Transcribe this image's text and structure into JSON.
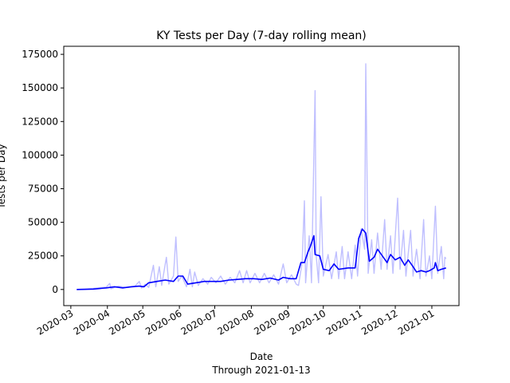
{
  "chart_data": {
    "type": "line",
    "title": "KY Tests per Day (7-day rolling mean)",
    "xlabel": "Date",
    "xlabel_sub": "Through 2021-01-13",
    "ylabel": "Tests per Day",
    "xlim": [
      "2020-02-24",
      "2021-01-24"
    ],
    "ylim": [
      -12000,
      181000
    ],
    "x_tick_labels": [
      "2020-03",
      "2020-04",
      "2020-05",
      "2020-06",
      "2020-07",
      "2020-08",
      "2020-09",
      "2020-10",
      "2020-11",
      "2020-12",
      "2021-01"
    ],
    "y_tick_values": [
      0,
      25000,
      50000,
      75000,
      100000,
      125000,
      150000,
      175000
    ],
    "y_tick_labels": [
      "0",
      "25000",
      "50000",
      "75000",
      "100000",
      "125000",
      "150000",
      "175000"
    ],
    "grid": false,
    "series": [
      {
        "role": "daily",
        "color": "#bfbfff",
        "points": [
          [
            "2020-03-06",
            0
          ],
          [
            "2020-03-13",
            200
          ],
          [
            "2020-03-20",
            800
          ],
          [
            "2020-03-27",
            1500
          ],
          [
            "2020-03-31",
            1800
          ],
          [
            "2020-04-03",
            4500
          ],
          [
            "2020-04-04",
            500
          ],
          [
            "2020-04-10",
            2500
          ],
          [
            "2020-04-17",
            1500
          ],
          [
            "2020-04-24",
            2000
          ],
          [
            "2020-04-28",
            6000
          ],
          [
            "2020-04-30",
            1000
          ],
          [
            "2020-05-03",
            4000
          ],
          [
            "2020-05-06",
            1500
          ],
          [
            "2020-05-10",
            18000
          ],
          [
            "2020-05-12",
            2000
          ],
          [
            "2020-05-15",
            17000
          ],
          [
            "2020-05-17",
            3000
          ],
          [
            "2020-05-21",
            24000
          ],
          [
            "2020-05-23",
            4000
          ],
          [
            "2020-05-27",
            10000
          ],
          [
            "2020-05-29",
            39000
          ],
          [
            "2020-05-31",
            6000
          ],
          [
            "2020-06-03",
            10000
          ],
          [
            "2020-06-07",
            2000
          ],
          [
            "2020-06-10",
            15000
          ],
          [
            "2020-06-12",
            2000
          ],
          [
            "2020-06-14",
            13000
          ],
          [
            "2020-06-17",
            3000
          ],
          [
            "2020-06-21",
            8000
          ],
          [
            "2020-06-25",
            4000
          ],
          [
            "2020-06-28",
            9000
          ],
          [
            "2020-07-02",
            5000
          ],
          [
            "2020-07-06",
            10000
          ],
          [
            "2020-07-10",
            4000
          ],
          [
            "2020-07-14",
            9000
          ],
          [
            "2020-07-18",
            5000
          ],
          [
            "2020-07-22",
            14000
          ],
          [
            "2020-07-25",
            5000
          ],
          [
            "2020-07-28",
            14000
          ],
          [
            "2020-07-31",
            5000
          ],
          [
            "2020-08-04",
            12000
          ],
          [
            "2020-08-08",
            5000
          ],
          [
            "2020-08-12",
            12000
          ],
          [
            "2020-08-16",
            5000
          ],
          [
            "2020-08-20",
            11000
          ],
          [
            "2020-08-24",
            4000
          ],
          [
            "2020-08-28",
            19000
          ],
          [
            "2020-08-31",
            5000
          ],
          [
            "2020-09-04",
            11000
          ],
          [
            "2020-09-08",
            4000
          ],
          [
            "2020-09-10",
            3000
          ],
          [
            "2020-09-13",
            20000
          ],
          [
            "2020-09-15",
            66000
          ],
          [
            "2020-09-16",
            5000
          ],
          [
            "2020-09-19",
            40000
          ],
          [
            "2020-09-21",
            5000
          ],
          [
            "2020-09-24",
            148000
          ],
          [
            "2020-09-25",
            25000
          ],
          [
            "2020-09-27",
            5000
          ],
          [
            "2020-09-29",
            69000
          ],
          [
            "2020-10-01",
            10000
          ],
          [
            "2020-10-05",
            26000
          ],
          [
            "2020-10-08",
            8000
          ],
          [
            "2020-10-12",
            28000
          ],
          [
            "2020-10-14",
            8000
          ],
          [
            "2020-10-17",
            32000
          ],
          [
            "2020-10-19",
            8000
          ],
          [
            "2020-10-22",
            28000
          ],
          [
            "2020-10-25",
            8000
          ],
          [
            "2020-10-28",
            33000
          ],
          [
            "2020-10-30",
            10000
          ],
          [
            "2020-11-02",
            45000
          ],
          [
            "2020-11-05",
            30000
          ],
          [
            "2020-11-06",
            168000
          ],
          [
            "2020-11-08",
            12000
          ],
          [
            "2020-11-11",
            37000
          ],
          [
            "2020-11-13",
            12000
          ],
          [
            "2020-11-16",
            42000
          ],
          [
            "2020-11-19",
            15000
          ],
          [
            "2020-11-22",
            52000
          ],
          [
            "2020-11-24",
            15000
          ],
          [
            "2020-11-27",
            40000
          ],
          [
            "2020-11-29",
            12000
          ],
          [
            "2020-12-03",
            68000
          ],
          [
            "2020-12-05",
            15000
          ],
          [
            "2020-12-08",
            44000
          ],
          [
            "2020-12-10",
            10000
          ],
          [
            "2020-12-14",
            44000
          ],
          [
            "2020-12-16",
            10000
          ],
          [
            "2020-12-19",
            30000
          ],
          [
            "2020-12-22",
            8000
          ],
          [
            "2020-12-25",
            52000
          ],
          [
            "2020-12-27",
            10000
          ],
          [
            "2020-12-30",
            25000
          ],
          [
            "2021-01-01",
            8000
          ],
          [
            "2021-01-04",
            62000
          ],
          [
            "2021-01-06",
            12000
          ],
          [
            "2021-01-09",
            32000
          ],
          [
            "2021-01-11",
            8000
          ],
          [
            "2021-01-12",
            24000
          ],
          [
            "2021-01-13",
            23000
          ]
        ]
      },
      {
        "role": "rolling",
        "color": "#0000ff",
        "points": [
          [
            "2020-03-06",
            0
          ],
          [
            "2020-03-20",
            300
          ],
          [
            "2020-03-31",
            1200
          ],
          [
            "2020-04-07",
            2000
          ],
          [
            "2020-04-14",
            1200
          ],
          [
            "2020-04-21",
            2000
          ],
          [
            "2020-04-28",
            2500
          ],
          [
            "2020-05-02",
            2000
          ],
          [
            "2020-05-06",
            5000
          ],
          [
            "2020-05-13",
            6000
          ],
          [
            "2020-05-20",
            7000
          ],
          [
            "2020-05-27",
            6000
          ],
          [
            "2020-05-31",
            10000
          ],
          [
            "2020-06-04",
            10000
          ],
          [
            "2020-06-08",
            4000
          ],
          [
            "2020-06-15",
            5000
          ],
          [
            "2020-06-22",
            6000
          ],
          [
            "2020-06-29",
            6000
          ],
          [
            "2020-07-06",
            6000
          ],
          [
            "2020-07-13",
            7000
          ],
          [
            "2020-07-20",
            7500
          ],
          [
            "2020-07-27",
            8000
          ],
          [
            "2020-08-03",
            8000
          ],
          [
            "2020-08-10",
            7500
          ],
          [
            "2020-08-17",
            8500
          ],
          [
            "2020-08-24",
            7000
          ],
          [
            "2020-08-28",
            9000
          ],
          [
            "2020-09-03",
            8000
          ],
          [
            "2020-09-08",
            8000
          ],
          [
            "2020-09-12",
            20000
          ],
          [
            "2020-09-15",
            20000
          ],
          [
            "2020-09-18",
            28000
          ],
          [
            "2020-09-20",
            32000
          ],
          [
            "2020-09-23",
            40000
          ],
          [
            "2020-09-24",
            26000
          ],
          [
            "2020-09-28",
            25000
          ],
          [
            "2020-10-01",
            15000
          ],
          [
            "2020-10-06",
            14000
          ],
          [
            "2020-10-10",
            19000
          ],
          [
            "2020-10-14",
            15000
          ],
          [
            "2020-10-22",
            16000
          ],
          [
            "2020-10-28",
            16000
          ],
          [
            "2020-10-31",
            38000
          ],
          [
            "2020-11-03",
            45000
          ],
          [
            "2020-11-06",
            42000
          ],
          [
            "2020-11-09",
            21000
          ],
          [
            "2020-11-13",
            24000
          ],
          [
            "2020-11-16",
            30000
          ],
          [
            "2020-11-20",
            25000
          ],
          [
            "2020-11-24",
            20000
          ],
          [
            "2020-11-27",
            26000
          ],
          [
            "2020-12-01",
            22000
          ],
          [
            "2020-12-05",
            24000
          ],
          [
            "2020-12-09",
            18000
          ],
          [
            "2020-12-12",
            22000
          ],
          [
            "2020-12-16",
            17000
          ],
          [
            "2020-12-19",
            13000
          ],
          [
            "2020-12-23",
            14000
          ],
          [
            "2020-12-27",
            13000
          ],
          [
            "2020-12-30",
            14000
          ],
          [
            "2021-01-03",
            16000
          ],
          [
            "2021-01-04",
            20000
          ],
          [
            "2021-01-06",
            14000
          ],
          [
            "2021-01-09",
            15000
          ],
          [
            "2021-01-13",
            16000
          ]
        ]
      }
    ]
  }
}
